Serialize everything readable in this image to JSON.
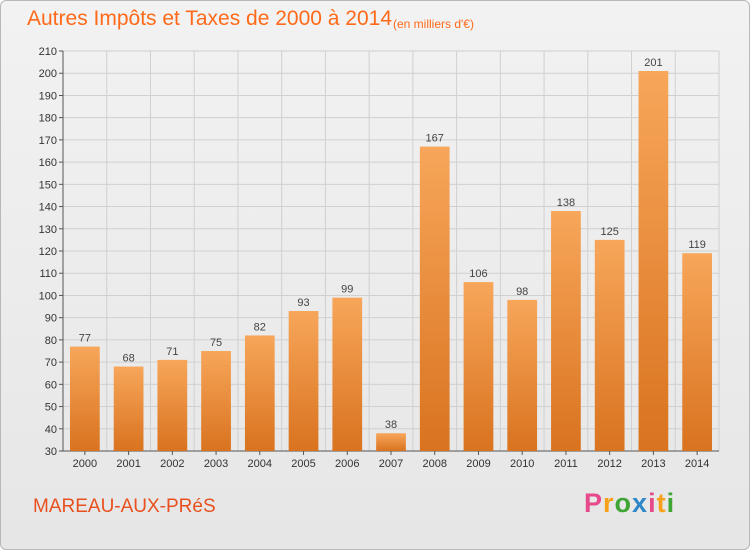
{
  "header": {
    "title": "Autres Impôts et Taxes de 2000 à 2014",
    "unit_note": "(en milliers d'€)"
  },
  "footer": {
    "commune": "MAREAU-AUX-PRéS",
    "logo": [
      "P",
      "r",
      "o",
      "x",
      "i",
      "t",
      "i"
    ]
  },
  "colors": {
    "bar_top": "#f7a65a",
    "bar_bottom": "#d9731f",
    "title": "#ff6a1a"
  },
  "chart_data": {
    "type": "bar",
    "title": "Autres Impôts et Taxes de 2000 à 2014",
    "subtitle": "(en milliers d'€)",
    "categories": [
      "2000",
      "2001",
      "2002",
      "2003",
      "2004",
      "2005",
      "2006",
      "2007",
      "2008",
      "2009",
      "2010",
      "2011",
      "2012",
      "2013",
      "2014"
    ],
    "values": [
      77,
      68,
      71,
      75,
      82,
      93,
      99,
      38,
      167,
      106,
      98,
      138,
      125,
      201,
      119
    ],
    "xlabel": "",
    "ylabel": "",
    "ylim": [
      30,
      210
    ],
    "yticks": [
      30,
      40,
      50,
      60,
      70,
      80,
      90,
      100,
      110,
      120,
      130,
      140,
      150,
      160,
      170,
      180,
      190,
      200,
      210
    ],
    "grid": true,
    "legend": "none"
  }
}
